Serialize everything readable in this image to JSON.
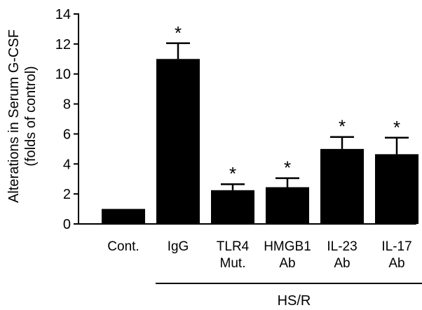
{
  "chart_data": {
    "type": "bar",
    "title": "",
    "ylabel": [
      "Alterations in Serum G-CSF",
      "(folds of control)"
    ],
    "xlabel": "",
    "ylim": [
      0,
      14
    ],
    "yticks": [
      0,
      2,
      4,
      6,
      8,
      10,
      12,
      14
    ],
    "categories": [
      [
        "Cont."
      ],
      [
        "IgG"
      ],
      [
        "TLR4",
        "Mut."
      ],
      [
        "HMGB1",
        "Ab"
      ],
      [
        "IL-23",
        "Ab"
      ],
      [
        "IL-17",
        "Ab"
      ]
    ],
    "values": [
      1.0,
      11.0,
      2.25,
      2.45,
      5.0,
      4.65
    ],
    "errors": [
      0,
      1.05,
      0.4,
      0.6,
      0.8,
      1.1
    ],
    "significance": [
      "",
      "*",
      "*",
      "*",
      "*",
      "*"
    ],
    "group_label": "HS/R",
    "group_span": [
      1,
      5
    ],
    "bar_color": "#000000",
    "grid": false,
    "legend": "none"
  }
}
